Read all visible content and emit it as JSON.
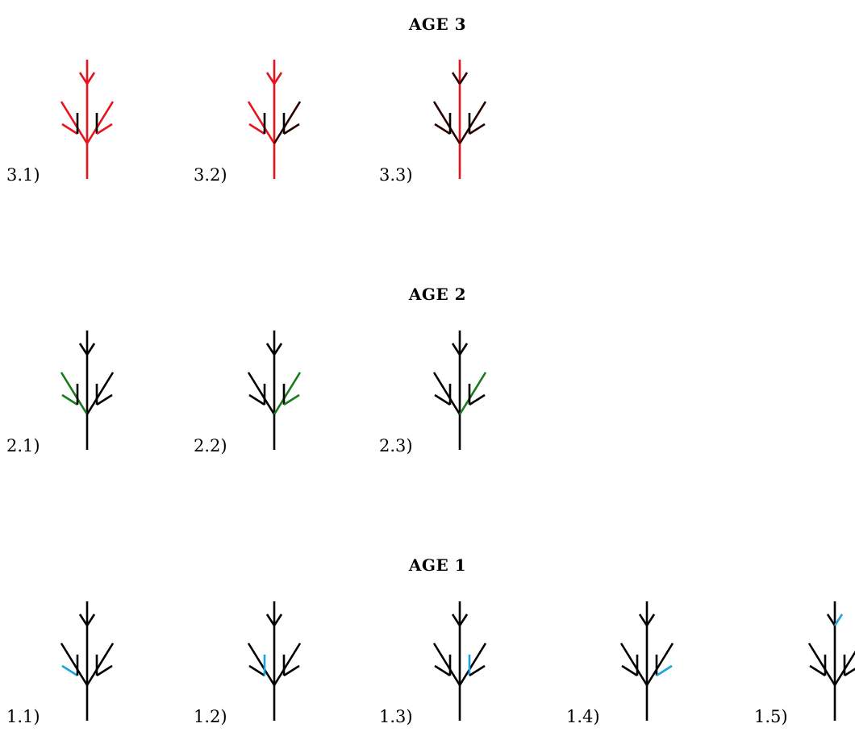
{
  "colors": {
    "default": "#000000",
    "age3": "#e8141c",
    "age3_dark": "#2a0000",
    "age2": "#1a7a1a",
    "age1": "#1aa3e0"
  },
  "sections": [
    {
      "title": "AGE 3",
      "items": [
        {
          "label": "3.1)",
          "highlight": [
            "trunk",
            "main_stem",
            "left_branch",
            "left_twig",
            "right_branch",
            "right_twig",
            "top_arrow_l",
            "top_arrow_r"
          ],
          "color": "age3"
        },
        {
          "label": "3.2)",
          "highlight": [
            "trunk",
            "main_stem",
            "left_branch",
            "left_twig",
            "top_arrow_l",
            "top_arrow_r"
          ],
          "color": "age3",
          "dark": [
            "right_branch",
            "right_twig"
          ]
        },
        {
          "label": "3.3)",
          "highlight": [
            "trunk",
            "main_stem"
          ],
          "color": "age3",
          "dark": [
            "left_branch",
            "left_twig",
            "right_branch",
            "right_twig",
            "top_arrow_l",
            "top_arrow_r"
          ]
        }
      ]
    },
    {
      "title": "AGE 2",
      "items": [
        {
          "label": "2.1)",
          "highlight": [
            "left_branch",
            "left_twig"
          ],
          "color": "age2"
        },
        {
          "label": "2.2)",
          "highlight": [
            "right_branch",
            "right_twig"
          ],
          "color": "age2"
        },
        {
          "label": "2.3)",
          "highlight": [
            "right_branch"
          ],
          "color": "age2"
        }
      ]
    },
    {
      "title": "AGE 1",
      "items": [
        {
          "label": "1.1)",
          "highlight": [
            "left_twig"
          ],
          "color": "age1"
        },
        {
          "label": "1.2)",
          "highlight": [
            "left_mid_twig"
          ],
          "color": "age1"
        },
        {
          "label": "1.3)",
          "highlight": [
            "right_mid_twig"
          ],
          "color": "age1"
        },
        {
          "label": "1.4)",
          "highlight": [
            "right_twig"
          ],
          "color": "age1"
        },
        {
          "label": "1.5)",
          "highlight": [
            "top_arrow_r"
          ],
          "color": "age1"
        }
      ]
    }
  ]
}
